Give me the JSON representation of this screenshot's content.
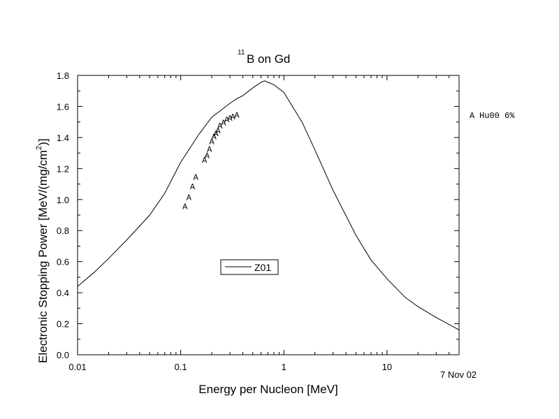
{
  "chart_data": {
    "type": "line",
    "title_prefix_superscript": "11",
    "title": "B on Gd",
    "xlabel": "Energy per Nucleon [MeV]",
    "ylabel_main": "Electronic Stopping Power [MeV/(mg/cm",
    "ylabel_sup": "2",
    "ylabel_end": ")]",
    "x_scale": "log",
    "xlim": [
      0.01,
      50
    ],
    "ylim": [
      0.0,
      1.8
    ],
    "x_ticks": [
      {
        "value": 0.01,
        "label": "0.01"
      },
      {
        "value": 0.1,
        "label": "0.1"
      },
      {
        "value": 1,
        "label": "1"
      },
      {
        "value": 10,
        "label": "10"
      }
    ],
    "y_ticks": [
      {
        "value": 0.0,
        "label": "0.0"
      },
      {
        "value": 0.2,
        "label": "0.2"
      },
      {
        "value": 0.4,
        "label": "0.4"
      },
      {
        "value": 0.6,
        "label": "0.6"
      },
      {
        "value": 0.8,
        "label": "0.8"
      },
      {
        "value": 1.0,
        "label": "1.0"
      },
      {
        "value": 1.2,
        "label": "1.2"
      },
      {
        "value": 1.4,
        "label": "1.4"
      },
      {
        "value": 1.6,
        "label": "1.6"
      },
      {
        "value": 1.8,
        "label": "1.8"
      }
    ],
    "series": [
      {
        "name": "Z01",
        "style": "line",
        "x": [
          0.01,
          0.015,
          0.02,
          0.03,
          0.04,
          0.05,
          0.07,
          0.1,
          0.15,
          0.2,
          0.3,
          0.35,
          0.4,
          0.5,
          0.6,
          0.65,
          0.8,
          1.0,
          1.5,
          2.0,
          3.0,
          5.0,
          7.0,
          10.0,
          15.0,
          20.0,
          30.0,
          50.0
        ],
        "y": [
          0.44,
          0.54,
          0.62,
          0.74,
          0.83,
          0.9,
          1.04,
          1.24,
          1.42,
          1.53,
          1.62,
          1.65,
          1.67,
          1.72,
          1.755,
          1.765,
          1.74,
          1.69,
          1.5,
          1.32,
          1.06,
          0.77,
          0.61,
          0.49,
          0.37,
          0.31,
          0.24,
          0.16
        ]
      },
      {
        "name": "Hu00 6%",
        "marker": "A",
        "style": "points",
        "x": [
          0.11,
          0.12,
          0.13,
          0.14,
          0.17,
          0.18,
          0.19,
          0.2,
          0.21,
          0.22,
          0.23,
          0.24,
          0.26,
          0.28,
          0.3,
          0.32,
          0.35
        ],
        "y": [
          0.96,
          1.02,
          1.09,
          1.15,
          1.26,
          1.29,
          1.33,
          1.38,
          1.41,
          1.43,
          1.45,
          1.48,
          1.5,
          1.52,
          1.53,
          1.54,
          1.55
        ]
      }
    ],
    "legend_inside": {
      "label": "Z01",
      "position": "center"
    },
    "legend_outside": {
      "marker": "A",
      "label": "Hu00 6%",
      "position": "right"
    },
    "footnote": "7 Nov 02",
    "grid": false
  }
}
